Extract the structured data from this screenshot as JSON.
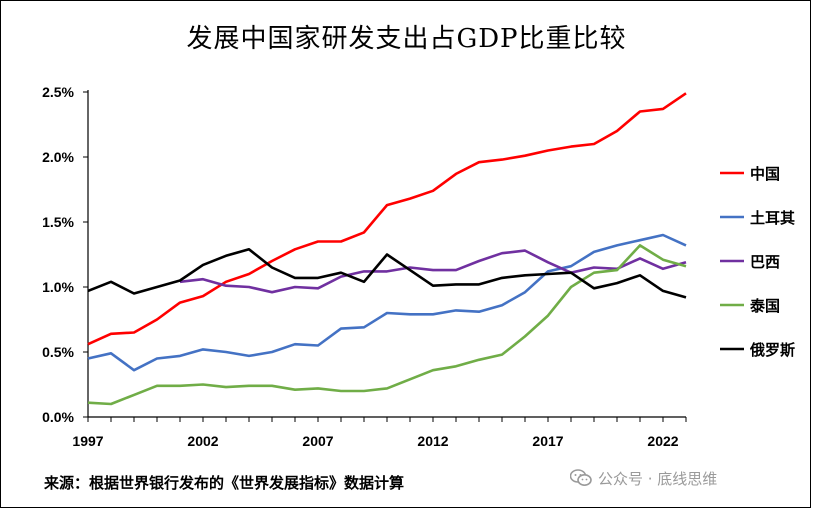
{
  "title": "发展中国家研发支出占GDP比重比较",
  "source": "来源：根据世界银行发布的《世界发展指标》数据计算",
  "watermark": {
    "text": "公众号 · 底线思维",
    "icon": "wechat-icon"
  },
  "chart_data": {
    "type": "line",
    "title": "发展中国家研发支出占GDP比重比较",
    "xlabel": "",
    "ylabel": "",
    "xlim": [
      1997,
      2023
    ],
    "ylim": [
      0,
      2.5
    ],
    "x_ticks": [
      1997,
      2002,
      2007,
      2012,
      2017,
      2022
    ],
    "y_ticks": [
      "0.0%",
      "0.5%",
      "1.0%",
      "1.5%",
      "2.0%",
      "2.5%"
    ],
    "y_tick_values": [
      0,
      0.5,
      1.0,
      1.5,
      2.0,
      2.5
    ],
    "grid": false,
    "legend_position": "right",
    "x": [
      1997,
      1998,
      1999,
      2000,
      2001,
      2002,
      2003,
      2004,
      2005,
      2006,
      2007,
      2008,
      2009,
      2010,
      2011,
      2012,
      2013,
      2014,
      2015,
      2016,
      2017,
      2018,
      2019,
      2020,
      2021,
      2022,
      2023
    ],
    "series": [
      {
        "name": "中国",
        "color": "#ff0000",
        "values": [
          0.56,
          0.64,
          0.65,
          0.75,
          0.88,
          0.93,
          1.04,
          1.1,
          1.2,
          1.29,
          1.35,
          1.35,
          1.42,
          1.63,
          1.68,
          1.74,
          1.87,
          1.96,
          1.98,
          2.01,
          2.05,
          2.08,
          2.1,
          2.2,
          2.35,
          2.37,
          2.49
        ]
      },
      {
        "name": "土耳其",
        "color": "#4472c4",
        "values": [
          0.45,
          0.49,
          0.36,
          0.45,
          0.47,
          0.52,
          0.5,
          0.47,
          0.5,
          0.56,
          0.55,
          0.68,
          0.69,
          0.8,
          0.79,
          0.79,
          0.82,
          0.81,
          0.86,
          0.96,
          1.12,
          1.16,
          1.27,
          1.32,
          1.36,
          1.4,
          1.32
        ]
      },
      {
        "name": "巴西",
        "color": "#7030a0",
        "values": [
          null,
          null,
          null,
          null,
          1.04,
          1.06,
          1.01,
          1.0,
          0.96,
          1.0,
          0.99,
          1.08,
          1.12,
          1.12,
          1.15,
          1.13,
          1.13,
          1.2,
          1.26,
          1.28,
          1.19,
          1.11,
          1.15,
          1.14,
          1.22,
          1.14,
          1.19
        ]
      },
      {
        "name": "泰国",
        "color": "#70ad47",
        "values": [
          0.11,
          0.1,
          0.17,
          0.24,
          0.24,
          0.25,
          0.23,
          0.24,
          0.24,
          0.21,
          0.22,
          0.2,
          0.2,
          0.22,
          0.29,
          0.36,
          0.39,
          0.44,
          0.48,
          0.62,
          0.78,
          1.0,
          1.11,
          1.13,
          1.32,
          1.21,
          1.16
        ]
      },
      {
        "name": "俄罗斯",
        "color": "#000000",
        "values": [
          0.97,
          1.04,
          0.95,
          1.0,
          1.05,
          1.17,
          1.24,
          1.29,
          1.15,
          1.07,
          1.07,
          1.11,
          1.04,
          1.25,
          1.13,
          1.01,
          1.02,
          1.02,
          1.07,
          1.09,
          1.1,
          1.11,
          0.99,
          1.03,
          1.09,
          0.97,
          0.92
        ]
      }
    ]
  }
}
